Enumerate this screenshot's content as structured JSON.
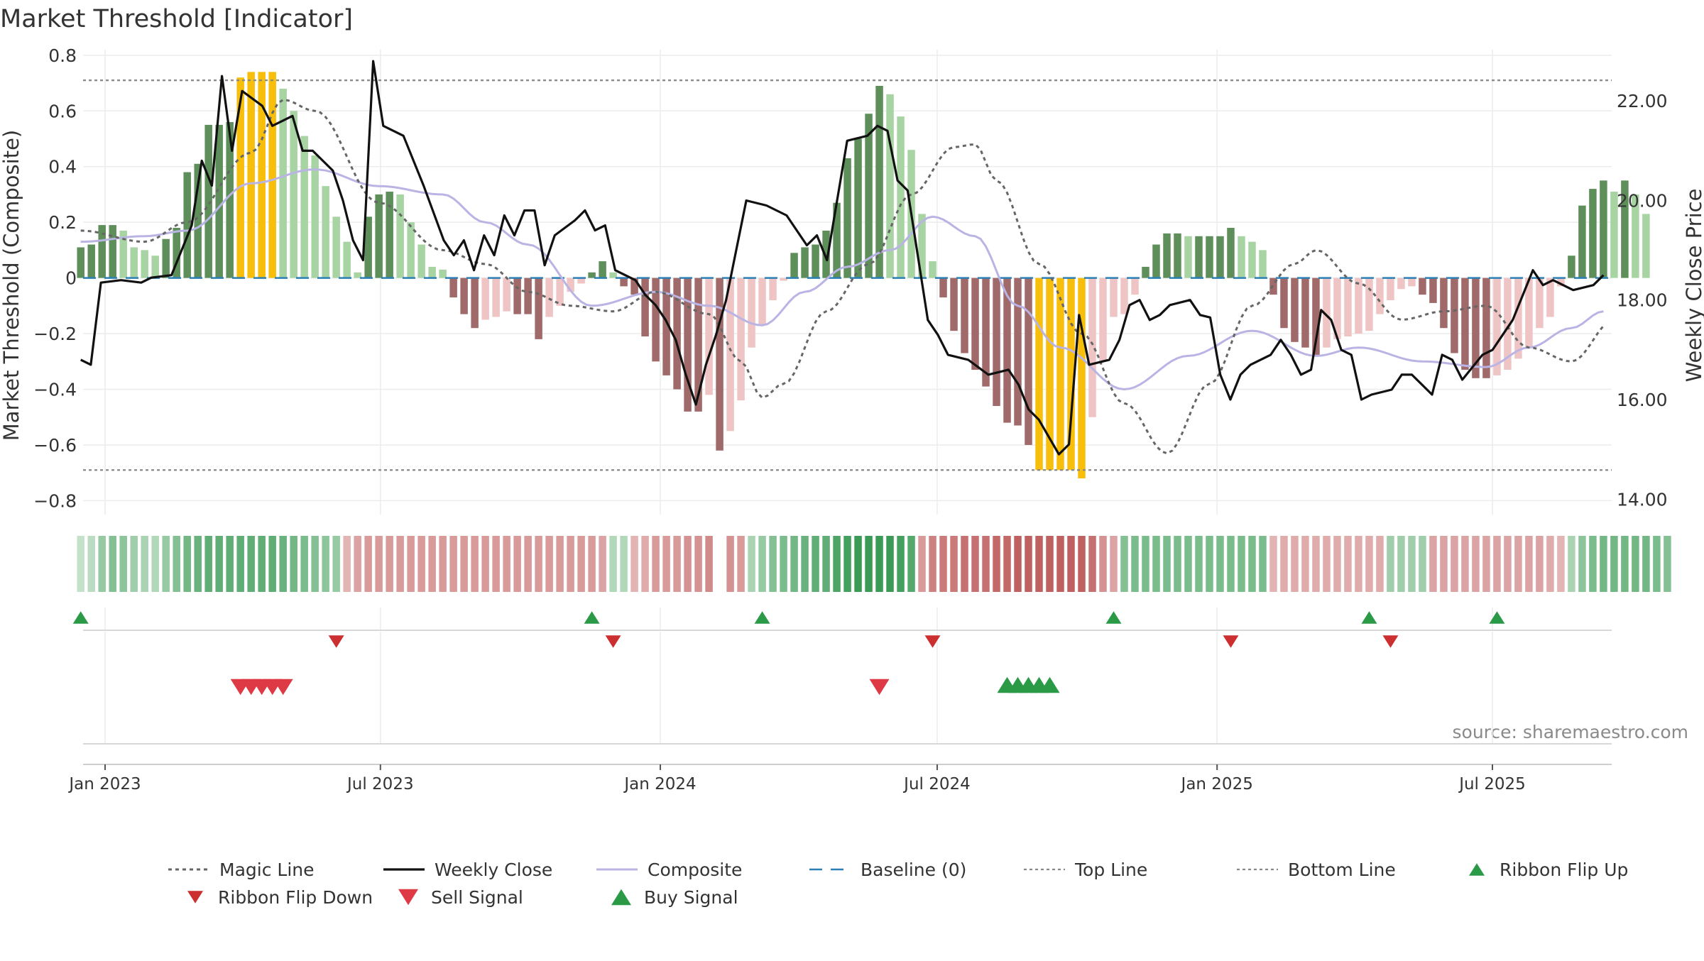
{
  "chart_data": {
    "type": "line",
    "title": "Market Threshold [Indicator]",
    "source": "source: sharemaestro.com",
    "y_left": {
      "label": "Market Threshold (Composite)",
      "ylim": [
        -0.85,
        0.82
      ],
      "ticks": [
        -0.8,
        -0.6,
        -0.4,
        -0.2,
        0,
        0.2,
        0.4,
        0.6,
        0.8
      ],
      "tick_labels": [
        "−0.8",
        "−0.6",
        "−0.4",
        "−0.2",
        "0",
        "0.2",
        "0.4",
        "0.6",
        "0.8"
      ]
    },
    "y_right": {
      "label": "Weekly Close Price",
      "ylim": [
        13.69,
        23.03
      ],
      "ticks": [
        14,
        16,
        18,
        20,
        22
      ],
      "tick_labels": [
        "14.00",
        "16.00",
        "18.00",
        "20.00",
        "22.00"
      ]
    },
    "x_axis": {
      "tick_dates": [
        "2023-01-01",
        "2023-07-01",
        "2024-01-01",
        "2024-07-01",
        "2025-01-01",
        "2025-07-01"
      ],
      "tick_labels": [
        "Jan 2023",
        "Jul 2023",
        "Jan 2024",
        "Jul 2024",
        "Jan 2025",
        "Jul 2025"
      ]
    },
    "weeks": {
      "start": "2022-12-16",
      "count": 144,
      "gap_index": 60
    },
    "reference_lines": {
      "top_line": 0.71,
      "bottom_line": -0.69,
      "baseline": 0
    },
    "composite_anchors": [
      [
        0,
        0.13
      ],
      [
        6,
        0.15
      ],
      [
        10,
        0.17
      ],
      [
        16,
        0.34
      ],
      [
        22,
        0.39
      ],
      [
        28,
        0.33
      ],
      [
        34,
        0.3
      ],
      [
        38,
        0.2
      ],
      [
        42,
        0.12
      ],
      [
        48,
        -0.1
      ],
      [
        54,
        -0.05
      ],
      [
        59,
        -0.1
      ],
      [
        64,
        -0.17
      ],
      [
        68,
        -0.05
      ],
      [
        72,
        0.04
      ],
      [
        76,
        0.1
      ],
      [
        80,
        0.22
      ],
      [
        84,
        0.15
      ],
      [
        88,
        -0.1
      ],
      [
        92,
        -0.25
      ],
      [
        98,
        -0.4
      ],
      [
        104,
        -0.28
      ],
      [
        110,
        -0.19
      ],
      [
        116,
        -0.28
      ],
      [
        120,
        -0.25
      ],
      [
        126,
        -0.3
      ],
      [
        132,
        -0.32
      ],
      [
        136,
        -0.25
      ],
      [
        140,
        -0.18
      ],
      [
        143,
        -0.12
      ]
    ],
    "magic_anchors": [
      [
        0,
        0.17
      ],
      [
        6,
        0.13
      ],
      [
        10,
        0.2
      ],
      [
        16,
        0.45
      ],
      [
        19,
        0.64
      ],
      [
        22,
        0.6
      ],
      [
        28,
        0.27
      ],
      [
        34,
        0.1
      ],
      [
        38,
        0.05
      ],
      [
        42,
        -0.05
      ],
      [
        46,
        -0.1
      ],
      [
        50,
        -0.12
      ],
      [
        54,
        -0.05
      ],
      [
        59,
        -0.13
      ],
      [
        62,
        -0.3
      ],
      [
        64,
        -0.43
      ],
      [
        66,
        -0.38
      ],
      [
        70,
        -0.12
      ],
      [
        74,
        0.05
      ],
      [
        78,
        0.3
      ],
      [
        82,
        0.47
      ],
      [
        84,
        0.48
      ],
      [
        86,
        0.35
      ],
      [
        90,
        0.05
      ],
      [
        94,
        -0.2
      ],
      [
        98,
        -0.45
      ],
      [
        102,
        -0.63
      ],
      [
        106,
        -0.38
      ],
      [
        110,
        -0.1
      ],
      [
        114,
        0.05
      ],
      [
        116,
        0.1
      ],
      [
        120,
        -0.02
      ],
      [
        124,
        -0.15
      ],
      [
        128,
        -0.12
      ],
      [
        132,
        -0.1
      ],
      [
        136,
        -0.25
      ],
      [
        140,
        -0.3
      ],
      [
        144,
        -0.15
      ],
      [
        148,
        0.1
      ],
      [
        150,
        0.22
      ],
      [
        152,
        0.2
      ]
    ],
    "price_anchors": [
      [
        0,
        16.8
      ],
      [
        1,
        16.7
      ],
      [
        2,
        18.35
      ],
      [
        4,
        18.4
      ],
      [
        6,
        18.35
      ],
      [
        7,
        18.45
      ],
      [
        9,
        18.5
      ],
      [
        11,
        19.5
      ],
      [
        12,
        20.8
      ],
      [
        13,
        20.3
      ],
      [
        14,
        22.5
      ],
      [
        15,
        21.0
      ],
      [
        16,
        22.2
      ],
      [
        18,
        21.9
      ],
      [
        19,
        21.5
      ],
      [
        20,
        21.6
      ],
      [
        21,
        21.7
      ],
      [
        22,
        21.0
      ],
      [
        23,
        21.0
      ],
      [
        25,
        20.6
      ],
      [
        26,
        20.0
      ],
      [
        27,
        19.2
      ],
      [
        28,
        18.8
      ],
      [
        29,
        22.8
      ],
      [
        30,
        21.5
      ],
      [
        32,
        21.3
      ],
      [
        34,
        20.3
      ],
      [
        36,
        19.2
      ],
      [
        37,
        18.9
      ],
      [
        38,
        19.2
      ],
      [
        39,
        18.6
      ],
      [
        40,
        19.3
      ],
      [
        41,
        18.9
      ],
      [
        42,
        19.7
      ],
      [
        43,
        19.3
      ],
      [
        44,
        19.8
      ],
      [
        45,
        19.8
      ],
      [
        46,
        18.7
      ],
      [
        47,
        19.3
      ],
      [
        49,
        19.6
      ],
      [
        50,
        19.8
      ],
      [
        51,
        19.4
      ],
      [
        52,
        19.5
      ],
      [
        53,
        18.6
      ],
      [
        55,
        18.4
      ],
      [
        56,
        18.1
      ],
      [
        57,
        17.9
      ],
      [
        58,
        17.6
      ],
      [
        59,
        17.2
      ],
      [
        60,
        16.5
      ],
      [
        61,
        15.9
      ],
      [
        62,
        16.7
      ],
      [
        63,
        17.3
      ],
      [
        64,
        18.0
      ],
      [
        65,
        19.0
      ],
      [
        66,
        20.0
      ],
      [
        68,
        19.9
      ],
      [
        70,
        19.7
      ],
      [
        72,
        19.1
      ],
      [
        73,
        19.3
      ],
      [
        74,
        18.8
      ],
      [
        76,
        21.2
      ],
      [
        78,
        21.3
      ],
      [
        79,
        21.5
      ],
      [
        80,
        21.4
      ],
      [
        81,
        20.4
      ],
      [
        82,
        20.2
      ],
      [
        84,
        17.6
      ],
      [
        85,
        17.3
      ],
      [
        86,
        16.9
      ],
      [
        88,
        16.8
      ],
      [
        90,
        16.5
      ],
      [
        91,
        16.55
      ],
      [
        92,
        16.6
      ],
      [
        93,
        16.3
      ],
      [
        94,
        15.8
      ],
      [
        95,
        15.6
      ],
      [
        97,
        14.9
      ],
      [
        98,
        15.1
      ],
      [
        99,
        17.7
      ],
      [
        100,
        16.7
      ],
      [
        102,
        16.8
      ],
      [
        103,
        17.2
      ],
      [
        104,
        17.9
      ],
      [
        105,
        18.0
      ],
      [
        106,
        17.6
      ],
      [
        107,
        17.7
      ],
      [
        108,
        17.9
      ],
      [
        110,
        18.0
      ],
      [
        111,
        17.7
      ],
      [
        112,
        17.65
      ],
      [
        113,
        16.5
      ],
      [
        114,
        16.0
      ],
      [
        115,
        16.5
      ],
      [
        116,
        16.7
      ],
      [
        117,
        16.8
      ],
      [
        118,
        16.9
      ],
      [
        119,
        17.2
      ],
      [
        120,
        16.9
      ],
      [
        121,
        16.5
      ],
      [
        122,
        16.6
      ],
      [
        123,
        17.8
      ],
      [
        124,
        17.6
      ],
      [
        125,
        17.0
      ],
      [
        126,
        16.9
      ],
      [
        127,
        16.0
      ],
      [
        128,
        16.1
      ],
      [
        130,
        16.2
      ],
      [
        131,
        16.5
      ],
      [
        132,
        16.5
      ],
      [
        134,
        16.1
      ],
      [
        135,
        16.9
      ],
      [
        136,
        16.8
      ],
      [
        137,
        16.4
      ],
      [
        139,
        16.9
      ],
      [
        140,
        17.0
      ],
      [
        141,
        17.3
      ],
      [
        142,
        17.6
      ],
      [
        144,
        18.6
      ],
      [
        145,
        18.3
      ],
      [
        146,
        18.4
      ],
      [
        147,
        18.3
      ],
      [
        148,
        18.2
      ],
      [
        150,
        18.3
      ],
      [
        151,
        18.5
      ]
    ],
    "bar_values": [
      0.11,
      0.12,
      0.19,
      0.19,
      0.17,
      0.11,
      0.1,
      0.08,
      0.14,
      0.18,
      0.38,
      0.41,
      0.55,
      0.55,
      0.56,
      0.72,
      0.74,
      0.74,
      0.74,
      0.68,
      0.6,
      0.51,
      0.44,
      0.33,
      0.22,
      0.13,
      0.02,
      0.22,
      0.3,
      0.31,
      0.3,
      0.2,
      0.12,
      0.04,
      0.03,
      -0.07,
      -0.13,
      -0.18,
      -0.15,
      -0.14,
      -0.12,
      -0.13,
      -0.13,
      -0.22,
      -0.14,
      -0.1,
      -0.05,
      -0.02,
      0.02,
      0.06,
      0.02,
      -0.03,
      -0.06,
      -0.21,
      -0.3,
      -0.35,
      -0.4,
      -0.48,
      -0.48,
      -0.42,
      -0.62,
      -0.55,
      -0.44,
      -0.25,
      -0.17,
      -0.08,
      -0.01,
      0.09,
      0.11,
      0.12,
      0.17,
      0.27,
      0.43,
      0.5,
      0.59,
      0.69,
      0.66,
      0.58,
      0.46,
      0.23,
      0.06,
      -0.07,
      -0.19,
      -0.27,
      -0.33,
      -0.39,
      -0.46,
      -0.52,
      -0.53,
      -0.6,
      -0.69,
      -0.69,
      -0.69,
      -0.69,
      -0.72,
      -0.5,
      -0.3,
      -0.14,
      -0.13,
      -0.06,
      0.04,
      0.12,
      0.16,
      0.16,
      0.15,
      0.15,
      0.15,
      0.15,
      0.18,
      0.15,
      0.13,
      0.1,
      -0.06,
      -0.18,
      -0.23,
      -0.25,
      -0.28,
      -0.25,
      -0.22,
      -0.21,
      -0.2,
      -0.19,
      -0.13,
      -0.08,
      -0.04,
      -0.03,
      -0.06,
      -0.09,
      -0.18,
      -0.27,
      -0.33,
      -0.36,
      -0.36,
      -0.35,
      -0.33,
      -0.29,
      -0.25,
      -0.18,
      -0.14,
      -0.03,
      0.08,
      0.26,
      0.32,
      0.35,
      0.31,
      0.35,
      0.3,
      0.23
    ],
    "ribbon_values": [
      0.05,
      0.1,
      0.3,
      0.4,
      0.35,
      0.25,
      0.2,
      0.15,
      0.3,
      0.4,
      0.5,
      0.55,
      0.6,
      0.6,
      0.6,
      0.6,
      0.6,
      0.6,
      0.6,
      0.55,
      0.5,
      0.45,
      0.4,
      0.35,
      0.3,
      -0.2,
      -0.3,
      -0.35,
      -0.35,
      -0.35,
      -0.35,
      -0.35,
      -0.35,
      -0.35,
      -0.35,
      -0.35,
      -0.35,
      -0.35,
      -0.35,
      -0.35,
      -0.35,
      -0.35,
      -0.35,
      -0.35,
      -0.35,
      -0.35,
      -0.35,
      -0.35,
      -0.35,
      -0.3,
      0.15,
      0.15,
      -0.2,
      -0.25,
      -0.35,
      -0.35,
      -0.35,
      -0.4,
      -0.4,
      -0.45,
      0.0,
      -0.4,
      -0.35,
      0.2,
      0.3,
      0.4,
      0.45,
      0.5,
      0.55,
      0.6,
      0.6,
      0.7,
      0.75,
      0.8,
      0.8,
      0.8,
      0.8,
      0.75,
      0.65,
      -0.35,
      -0.5,
      -0.55,
      -0.55,
      -0.6,
      -0.6,
      -0.6,
      -0.65,
      -0.65,
      -0.7,
      -0.7,
      -0.7,
      -0.7,
      -0.7,
      -0.7,
      -0.7,
      -0.6,
      -0.4,
      -0.3,
      0.4,
      0.45,
      0.45,
      0.45,
      0.45,
      0.45,
      0.45,
      0.45,
      0.45,
      0.45,
      0.45,
      0.45,
      0.45,
      0.45,
      -0.2,
      -0.25,
      -0.25,
      -0.25,
      -0.25,
      -0.25,
      -0.25,
      -0.25,
      -0.25,
      -0.25,
      -0.25,
      0.25,
      0.25,
      0.25,
      0.25,
      -0.3,
      -0.3,
      -0.3,
      -0.3,
      -0.3,
      -0.3,
      -0.3,
      -0.3,
      -0.3,
      -0.3,
      -0.3,
      -0.25,
      -0.2,
      0.2,
      0.35,
      0.45,
      0.5,
      0.5,
      0.5,
      0.5,
      0.5,
      0.45,
      0.4
    ],
    "ribbon_flip_up": [
      "2022-12-16",
      "2023-11-17",
      "2024-03-08",
      "2024-10-25",
      "2025-04-11",
      "2025-07-04"
    ],
    "ribbon_flip_down": [
      "2023-06-02",
      "2023-12-01",
      "2024-06-28",
      "2025-01-10",
      "2025-04-25"
    ],
    "sell_signals": [
      "2023-03-31",
      "2023-04-07",
      "2023-04-14",
      "2023-04-21",
      "2023-04-28",
      "2024-05-24"
    ],
    "buy_signals": [
      "2024-08-16",
      "2024-08-23",
      "2024-08-30",
      "2024-09-06",
      "2024-09-13"
    ],
    "legend_placement": "bottom-center",
    "grid": true,
    "colors": {
      "bar_pos_strong": "#5e8f5a",
      "bar_pos_weak": "#a8d4a3",
      "bar_neg_strong": "#a06a6a",
      "bar_neg_weak": "#efc4c4",
      "bar_extreme": "#f7be0b",
      "magic": "#666666",
      "weekly_close": "#111111",
      "composite": "#b9b4e4",
      "baseline": "#2b7fb7",
      "flip_up": "#2a9a47",
      "flip_down": "#cc2f2f",
      "sell": "#de3a46",
      "buy": "#2a9a47",
      "text": "#333333",
      "grid": "#ececec"
    },
    "legend": [
      {
        "label": "Magic Line",
        "symbol": "dotted",
        "color": "#666666"
      },
      {
        "label": "Weekly Close",
        "symbol": "solid",
        "color": "#111111"
      },
      {
        "label": "Composite",
        "symbol": "solid-light",
        "color": "#b9b4e4"
      },
      {
        "label": "Baseline (0)",
        "symbol": "dashed",
        "color": "#2b7fb7"
      },
      {
        "label": "Top Line",
        "symbol": "dotted-light",
        "color": "#888888"
      },
      {
        "label": "Bottom Line",
        "symbol": "dotted-light",
        "color": "#888888"
      },
      {
        "label": "Ribbon Flip Up",
        "symbol": "tri-up",
        "color": "#2a9a47"
      },
      {
        "label": "Ribbon Flip Down",
        "symbol": "tri-down",
        "color": "#cc2f2f"
      },
      {
        "label": "Sell Signal",
        "symbol": "tri-down-big",
        "color": "#de3a46"
      },
      {
        "label": "Buy Signal",
        "symbol": "tri-up-big",
        "color": "#2a9a47"
      }
    ]
  }
}
